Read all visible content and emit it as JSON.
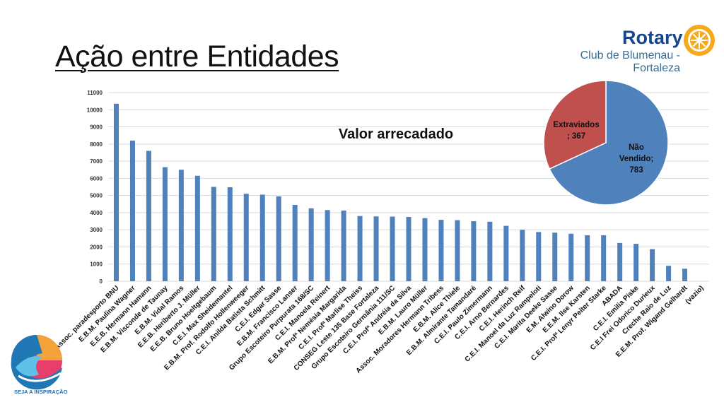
{
  "slide": {
    "title": "Ação entre Entidades",
    "logo": {
      "brand": "Rotary",
      "club_line1": "Club de Blumenau -",
      "club_line2": "Fortaleza"
    },
    "footer_logo_text": "SEJA A INSPIRAÇÃO"
  },
  "colors": {
    "bar": "#4f81bd",
    "pie_blue": "#4f81bd",
    "pie_red": "#c0504d",
    "rotary_blue": "#17458f",
    "rotary_gold": "#f7a81b"
  },
  "chart_data": [
    {
      "type": "bar",
      "title": "Valor arrecadado",
      "xlabel": "",
      "ylabel": "",
      "ylim": [
        0,
        11000
      ],
      "yticks": [
        0,
        1000,
        2000,
        3000,
        4000,
        5000,
        6000,
        7000,
        8000,
        9000,
        10000,
        11000
      ],
      "grid": true,
      "categories": [
        "APESBLU Assoc. paradesporto BNU",
        "E.B.M. Paulina Wagner",
        "E.E.B. Hermann Hamann",
        "E.B.M. Visconde de Taunay",
        "E.B.M. Vidal Ramos",
        "E.E.B. Heriberto J. Müller",
        "E.E.B. Bruno Hoeltgebaum",
        "C.E.I. Max Sheidemantel",
        "E.B.M. Prof. Rodolfo Hollenweeger",
        "C.E.I. Anilda Batista Schmitt",
        "C.E.I. Edgar Sasse",
        "E.B.M. Francisco Lanser",
        "Grupo Escoteiro Purpurata 168/SC",
        "C.E.I. Manoela Reinert",
        "E.B.M. Profª Nemésia Margarida",
        "C.E.I. Profª Marlise Theiss",
        "CONSEG Leste 135 Base Fortaleza",
        "Grupo Escoteiro Germânia 111/SC",
        "C.E.I. Profª Andréia da Silva",
        "E.B.M. Lauro Müller",
        "Assoc. Moradores Hermann Tribess",
        "E.B.M. Alice Thiele",
        "E.B.M. Almirante Tamandaré",
        "C.E.I. Paulo Zimermann",
        "C.E.I. Arno Bernardes",
        "C.E.I. Herinch Reif",
        "C.E.I. Manoel da Luz Rampeloti",
        "C.E.I. Marita Deeke Sasse",
        "E.M. Alwino Dorow",
        "E.E.M. Ilse Karsten",
        "C.E.I. Profª Lenyr Peiter Starke",
        "ABADA",
        "C.E.I. Emilia Piske",
        "C.E.I Frei Odorico Durieux",
        "Creche Raio de Luz",
        "E.E.M. Prof. Wigand Gelhardt",
        "(vazio)"
      ],
      "values": [
        10350,
        8200,
        7600,
        6650,
        6500,
        6150,
        5500,
        5480,
        5100,
        5050,
        4950,
        4450,
        4250,
        4150,
        4120,
        3800,
        3780,
        3770,
        3750,
        3680,
        3580,
        3560,
        3500,
        3470,
        3230,
        3000,
        2870,
        2830,
        2770,
        2680,
        2680,
        2230,
        2180,
        1870,
        900,
        730,
        0
      ]
    },
    {
      "type": "pie",
      "slices": [
        {
          "label": "Não Vendido",
          "value": 783,
          "label_lines": [
            "Não",
            "Vendido;",
            "783"
          ]
        },
        {
          "label": "Extraviados",
          "value": 367,
          "label_lines": [
            "Extraviados",
            "; 367"
          ]
        }
      ]
    }
  ]
}
